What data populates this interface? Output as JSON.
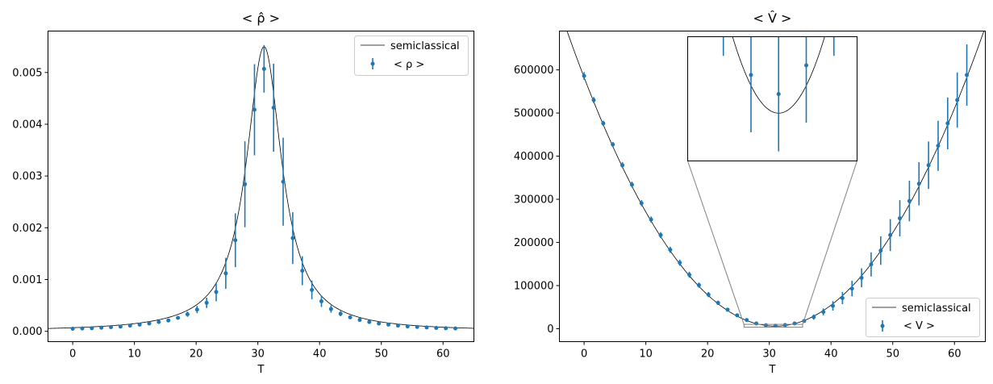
{
  "colors": {
    "data": "#1f77b4",
    "curve": "#000000",
    "zoom": "#808080"
  },
  "chart_data": [
    {
      "type": "scatter",
      "title": "< ρ̂ >",
      "xlabel": "T",
      "ylabel": "",
      "xlim": [
        -4,
        65
      ],
      "ylim": [
        -0.0002,
        0.0058
      ],
      "xticks": [
        0,
        10,
        20,
        30,
        40,
        50,
        60
      ],
      "yticks": [
        0.0,
        0.001,
        0.002,
        0.003,
        0.004,
        0.005
      ],
      "ytick_labels": [
        "0.000",
        "0.001",
        "0.002",
        "0.003",
        "0.004",
        "0.005"
      ],
      "legend_position": "upper right",
      "series": [
        {
          "name": "semiclassical",
          "kind": "line",
          "model": "lorentzian",
          "center": 31,
          "peak": 0.0055,
          "half_width": 3.5
        },
        {
          "name": "< ρ >",
          "kind": "errorbar",
          "x": [
            0,
            1.55,
            3.1,
            4.65,
            6.2,
            7.75,
            9.3,
            10.85,
            12.4,
            13.95,
            15.5,
            17.05,
            18.6,
            20.15,
            21.7,
            23.25,
            24.8,
            26.35,
            27.9,
            29.45,
            31,
            32.55,
            34.1,
            35.65,
            37.2,
            38.75,
            40.3,
            41.85,
            43.4,
            44.95,
            46.5,
            48.05,
            49.6,
            51.15,
            52.7,
            54.25,
            55.8,
            57.35,
            58.9,
            60.45,
            62
          ],
          "y": [
            5e-05,
            5.5e-05,
            6e-05,
            7e-05,
            8e-05,
            9e-05,
            0.00011,
            0.00013,
            0.00015,
            0.00018,
            0.00021,
            0.00026,
            0.00033,
            0.00042,
            0.00055,
            0.00076,
            0.00112,
            0.00176,
            0.00284,
            0.00428,
            0.00507,
            0.00432,
            0.00289,
            0.0018,
            0.00117,
            0.0008,
            0.00058,
            0.00043,
            0.00034,
            0.00027,
            0.00022,
            0.00018,
            0.00015,
            0.00013,
            0.00011,
            9.5e-05,
            8.5e-05,
            7.5e-05,
            6.5e-05,
            6e-05,
            5.5e-05
          ],
          "err": [
            0,
            0,
            0,
            0,
            0,
            0,
            0,
            0,
            0,
            0,
            0,
            0,
            5e-05,
            7e-05,
            0.0001,
            0.00018,
            0.0003,
            0.00052,
            0.00083,
            0.00088,
            0.00046,
            0.00085,
            0.00085,
            0.0005,
            0.00028,
            0.00018,
            0.00011,
            7e-05,
            5e-05,
            0,
            0,
            0,
            0,
            0,
            0,
            0,
            0,
            0,
            0,
            0,
            0
          ]
        }
      ]
    },
    {
      "type": "scatter",
      "title": "< V̂ >",
      "xlabel": "T",
      "ylabel": "",
      "xlim": [
        -4,
        65
      ],
      "ylim": [
        -30000,
        690000
      ],
      "xticks": [
        0,
        10,
        20,
        30,
        40,
        50,
        60
      ],
      "yticks": [
        0,
        100000,
        200000,
        300000,
        400000,
        500000,
        600000
      ],
      "ytick_labels": [
        "0",
        "100000",
        "200000",
        "300000",
        "400000",
        "500000",
        "600000"
      ],
      "legend_position": "lower right",
      "series": [
        {
          "name": "semiclassical",
          "kind": "line",
          "model": "parabola",
          "vertex_x": 31,
          "vertex_y": 6000,
          "curvature": 600
        },
        {
          "name": "< V >",
          "kind": "errorbar",
          "x": [
            0,
            1.55,
            3.1,
            4.65,
            6.2,
            7.75,
            9.3,
            10.85,
            12.4,
            13.95,
            15.5,
            17.05,
            18.6,
            20.15,
            21.7,
            23.25,
            24.8,
            26.35,
            27.9,
            29.45,
            31,
            32.55,
            34.1,
            35.65,
            37.2,
            38.75,
            40.3,
            41.85,
            43.4,
            44.95,
            46.5,
            48.05,
            49.6,
            51.15,
            52.7,
            54.25,
            55.8,
            57.35,
            58.9,
            60.45,
            62
          ],
          "y": [
            586000,
            530000,
            476000,
            427000,
            379000,
            334000,
            291000,
            253000,
            217000,
            183000,
            153000,
            125000,
            101000,
            79000,
            60000,
            44000,
            31000,
            20000,
            12000,
            8000,
            7000,
            8500,
            12000,
            18000,
            27000,
            39000,
            53000,
            71000,
            93000,
            118000,
            149000,
            181000,
            217000,
            256000,
            296000,
            336000,
            379000,
            424000,
            476000,
            530000,
            588000
          ],
          "err": [
            9000,
            7000,
            6000,
            6000,
            7000,
            7000,
            7000,
            7000,
            7000,
            7000,
            7000,
            7000,
            6000,
            6000,
            5000,
            4000,
            3000,
            3000,
            3000,
            3000,
            3000,
            3000,
            3000,
            4000,
            6000,
            8000,
            11000,
            14000,
            18000,
            22000,
            28000,
            33000,
            37000,
            42000,
            47000,
            50000,
            55000,
            58000,
            60000,
            64000,
            71000
          ]
        }
      ],
      "inset": {
        "xlim": [
          25.9,
          35.4
        ],
        "ylim": [
          3500,
          10000
        ]
      }
    }
  ]
}
